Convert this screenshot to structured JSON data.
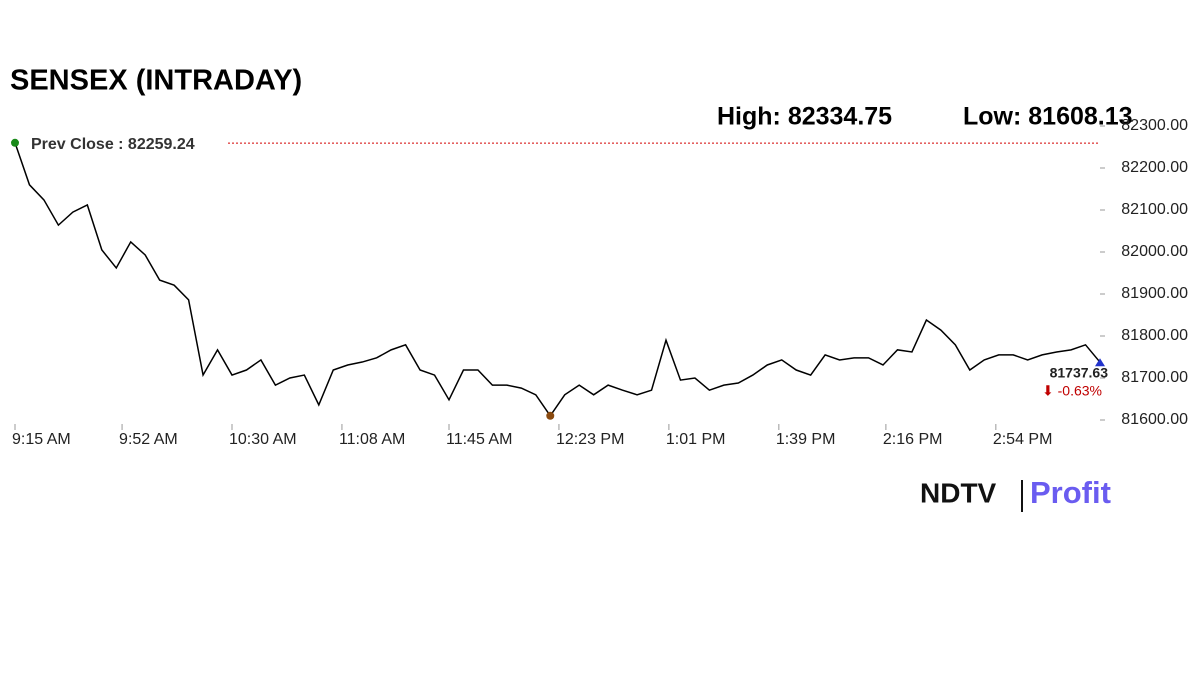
{
  "chart_data": {
    "type": "line",
    "title": "SENSEX (INTRADAY)",
    "high_text": "High: 82334.75",
    "low_text": "Low: 81608.13",
    "prev_close": {
      "value": 82259.24,
      "label": "Prev Close : 82259.24",
      "color": "#d40000"
    },
    "last_label": "81737.63",
    "change_label": "⬇ -0.63%",
    "brand": {
      "left": "NDTV",
      "right": "Profit"
    },
    "x": [
      "9:15 AM",
      "9:20 AM",
      "9:25 AM",
      "9:30 AM",
      "9:35 AM",
      "9:40 AM",
      "9:45 AM",
      "9:50 AM",
      "9:55 AM",
      "10:00 AM",
      "10:05 AM",
      "10:10 AM",
      "10:15 AM",
      "10:20 AM",
      "10:25 AM",
      "10:30 AM",
      "10:35 AM",
      "10:40 AM",
      "10:45 AM",
      "10:50 AM",
      "10:55 AM",
      "11:00 AM",
      "11:05 AM",
      "11:10 AM",
      "11:15 AM",
      "11:20 AM",
      "11:25 AM",
      "11:30 AM",
      "11:35 AM",
      "11:40 AM",
      "11:45 AM",
      "11:50 AM",
      "11:55 AM",
      "12:00 PM",
      "12:05 PM",
      "12:10 PM",
      "12:15 PM",
      "12:20 PM",
      "12:25 PM",
      "12:30 PM",
      "12:35 PM",
      "12:40 PM",
      "12:45 PM",
      "12:50 PM",
      "12:55 PM",
      "1:00 PM",
      "1:05 PM",
      "1:10 PM",
      "1:15 PM",
      "1:20 PM",
      "1:25 PM",
      "1:30 PM",
      "1:35 PM",
      "1:40 PM",
      "1:45 PM",
      "1:50 PM",
      "1:55 PM",
      "2:00 PM",
      "2:05 PM",
      "2:10 PM",
      "2:15 PM",
      "2:20 PM",
      "2:25 PM",
      "2:30 PM",
      "2:35 PM",
      "2:40 PM",
      "2:45 PM",
      "2:50 PM",
      "2:55 PM",
      "3:00 PM",
      "3:05 PM",
      "3:10 PM",
      "3:15 PM",
      "3:20 PM",
      "3:25 PM",
      "3:30 PM"
    ],
    "series": [
      {
        "color": "#000000",
        "values": [
          82260,
          82160,
          82124,
          82064,
          82095,
          82112,
          82005,
          81962,
          82024,
          81993,
          81933,
          81921,
          81886,
          81707,
          81767,
          81707,
          81719,
          81743,
          81683,
          81700,
          81707,
          81636,
          81719,
          81731,
          81738,
          81748,
          81767,
          81779,
          81719,
          81707,
          81648,
          81719,
          81719,
          81683,
          81683,
          81676,
          81660,
          81610,
          81660,
          81683,
          81660,
          81683,
          81671,
          81660,
          81671,
          81790,
          81695,
          81700,
          81671,
          81683,
          81688,
          81707,
          81731,
          81743,
          81719,
          81707,
          81755,
          81743,
          81748,
          81748,
          81731,
          81767,
          81762,
          81838,
          81814,
          81779,
          81719,
          81743,
          81755,
          81755,
          81743,
          81755,
          81762,
          81767,
          81779,
          81737.63
        ]
      }
    ],
    "xlim": [
      "9:15 AM",
      "3:30 PM"
    ],
    "xticks": [
      "9:15 AM",
      "9:52 AM",
      "10:30 AM",
      "11:08 AM",
      "11:45 AM",
      "12:23 PM",
      "1:01 PM",
      "1:39 PM",
      "2:16 PM",
      "2:54 PM"
    ],
    "ylim": [
      81600,
      82300
    ],
    "yticks": [
      {
        "value": 81600,
        "label": "81600.00"
      },
      {
        "value": 81700,
        "label": "81700.00"
      },
      {
        "value": 81800,
        "label": "81800.00"
      },
      {
        "value": 81900,
        "label": "81900.00"
      },
      {
        "value": 82000,
        "label": "82000.00"
      },
      {
        "value": 82100,
        "label": "82100.00"
      },
      {
        "value": 82200,
        "label": "82200.00"
      },
      {
        "value": 82300,
        "label": "82300.00"
      }
    ],
    "grid": false
  }
}
